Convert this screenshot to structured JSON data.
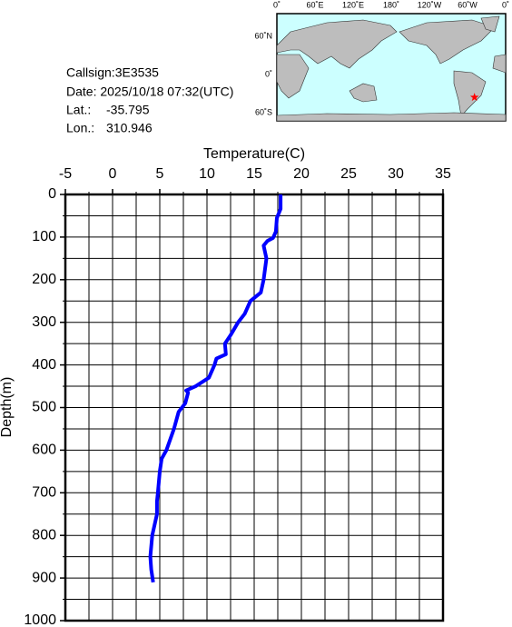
{
  "info": {
    "callsign": "Callsign:3E3535",
    "date": "Date:  2025/10/18 07:32(UTC)",
    "lat": {
      "label": "Lat.:",
      "value": -35.795
    },
    "lon": {
      "label": "Lon.:",
      "value": 310.946
    }
  },
  "map": {
    "top_labels": [
      "0˚",
      "60˚E",
      "120˚E",
      "180˚",
      "120˚W",
      "60˚W",
      "0˚"
    ],
    "left_labels": [
      "60˚N",
      "0˚",
      "60˚S"
    ],
    "marker_color": "#ff0000"
  },
  "chart_data": {
    "type": "line",
    "xlabel": "Temperature(C)",
    "ylabel": "Depth(m)",
    "xlim": [
      -5,
      35
    ],
    "xticks": [
      -5,
      0,
      5,
      10,
      15,
      20,
      25,
      30,
      35
    ],
    "xminor": [
      -2.5,
      2.5,
      7.5,
      12.5,
      17.5,
      22.5,
      27.5,
      32.5
    ],
    "ylim": [
      0,
      1000
    ],
    "yticks": [
      0,
      100,
      200,
      300,
      400,
      500,
      600,
      700,
      800,
      900,
      1000
    ],
    "yminor": [
      50,
      150,
      250,
      350,
      450,
      550,
      650,
      750,
      850,
      950
    ],
    "grid": true,
    "color": "#0000ff",
    "x": [
      17.8,
      17.8,
      17.4,
      17.3,
      17.0,
      16.4,
      16.0,
      16.3,
      16.0,
      15.7,
      14.6,
      14.0,
      13.3,
      12.5,
      11.9,
      12.0,
      11.0,
      10.8,
      10.2,
      8.8,
      7.8,
      8.0,
      7.7,
      7.0,
      6.5,
      5.7,
      5.2,
      5.0,
      4.8,
      4.7,
      4.7,
      4.2,
      4.0,
      4.1,
      4.3
    ],
    "y": [
      0,
      34,
      55,
      87,
      102,
      109,
      120,
      150,
      200,
      230,
      250,
      280,
      300,
      330,
      350,
      375,
      385,
      400,
      430,
      450,
      460,
      465,
      490,
      510,
      550,
      600,
      620,
      650,
      700,
      720,
      750,
      800,
      850,
      880,
      910
    ]
  }
}
